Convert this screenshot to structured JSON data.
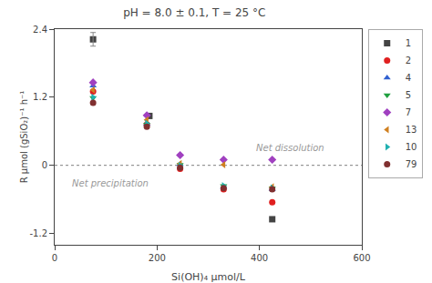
{
  "chart_data": {
    "type": "scatter",
    "title": "pH = 8.0 ± 0.1, T = 25 °C",
    "xlabel": "Si(OH)₄ μmol/L",
    "ylabel": "R μmol (gSiO₂)⁻¹ h⁻¹",
    "xlim": [
      0,
      600
    ],
    "ylim": [
      -1.4,
      2.4
    ],
    "xticks": [
      0,
      200,
      400,
      600
    ],
    "yticks": [
      -1.2,
      0.0,
      1.2,
      2.4
    ],
    "grid": false,
    "legend": "upper right",
    "series": [
      {
        "name": "1",
        "color": "#444444",
        "marker": "square",
        "x": [
          75,
          185,
          425
        ],
        "y": [
          2.22,
          0.87,
          -0.95
        ]
      },
      {
        "name": "2",
        "color": "#e02020",
        "marker": "circle",
        "x": [
          75,
          180,
          245,
          330,
          425
        ],
        "y": [
          1.3,
          0.72,
          -0.06,
          -0.42,
          -0.65
        ]
      },
      {
        "name": "4",
        "color": "#3060d0",
        "marker": "triangle-up",
        "x": [
          75,
          180,
          245,
          330,
          425
        ],
        "y": [
          1.4,
          0.73,
          0.02,
          -0.38,
          -0.42
        ]
      },
      {
        "name": "5",
        "color": "#20a040",
        "marker": "triangle-down",
        "x": [
          75,
          180,
          245,
          330,
          425
        ],
        "y": [
          1.19,
          0.72,
          0.01,
          -0.36,
          -0.4
        ]
      },
      {
        "name": "7",
        "color": "#a040c0",
        "marker": "diamond",
        "x": [
          75,
          180,
          245,
          330,
          425
        ],
        "y": [
          1.46,
          0.88,
          0.18,
          0.1,
          0.1
        ]
      },
      {
        "name": "13",
        "color": "#d08020",
        "marker": "triangle-left",
        "x": [
          75,
          180,
          245,
          330,
          425
        ],
        "y": [
          1.33,
          0.8,
          0.03,
          0.01,
          -0.38
        ]
      },
      {
        "name": "10",
        "color": "#20b0b0",
        "marker": "triangle-right",
        "x": [
          75,
          180,
          245,
          330,
          425
        ],
        "y": [
          1.2,
          0.74,
          0.0,
          -0.36,
          -0.4
        ]
      },
      {
        "name": "79",
        "color": "#803030",
        "marker": "circle",
        "x": [
          75,
          180,
          245,
          330,
          425
        ],
        "y": [
          1.1,
          0.68,
          -0.04,
          -0.4,
          -0.42
        ]
      }
    ],
    "error_bars": [
      {
        "x": 75,
        "y": 2.22,
        "yerr": 0.12,
        "color": "#888888"
      }
    ],
    "hline": {
      "y": 0,
      "color": "gray",
      "line_style": "dot"
    },
    "annotations": [
      {
        "text": "Net precipitation",
        "x": 30,
        "y": -0.2,
        "color": "#999999"
      },
      {
        "text": "Net dissolution",
        "x": 390,
        "y": 0.18,
        "color": "#999999"
      }
    ]
  }
}
